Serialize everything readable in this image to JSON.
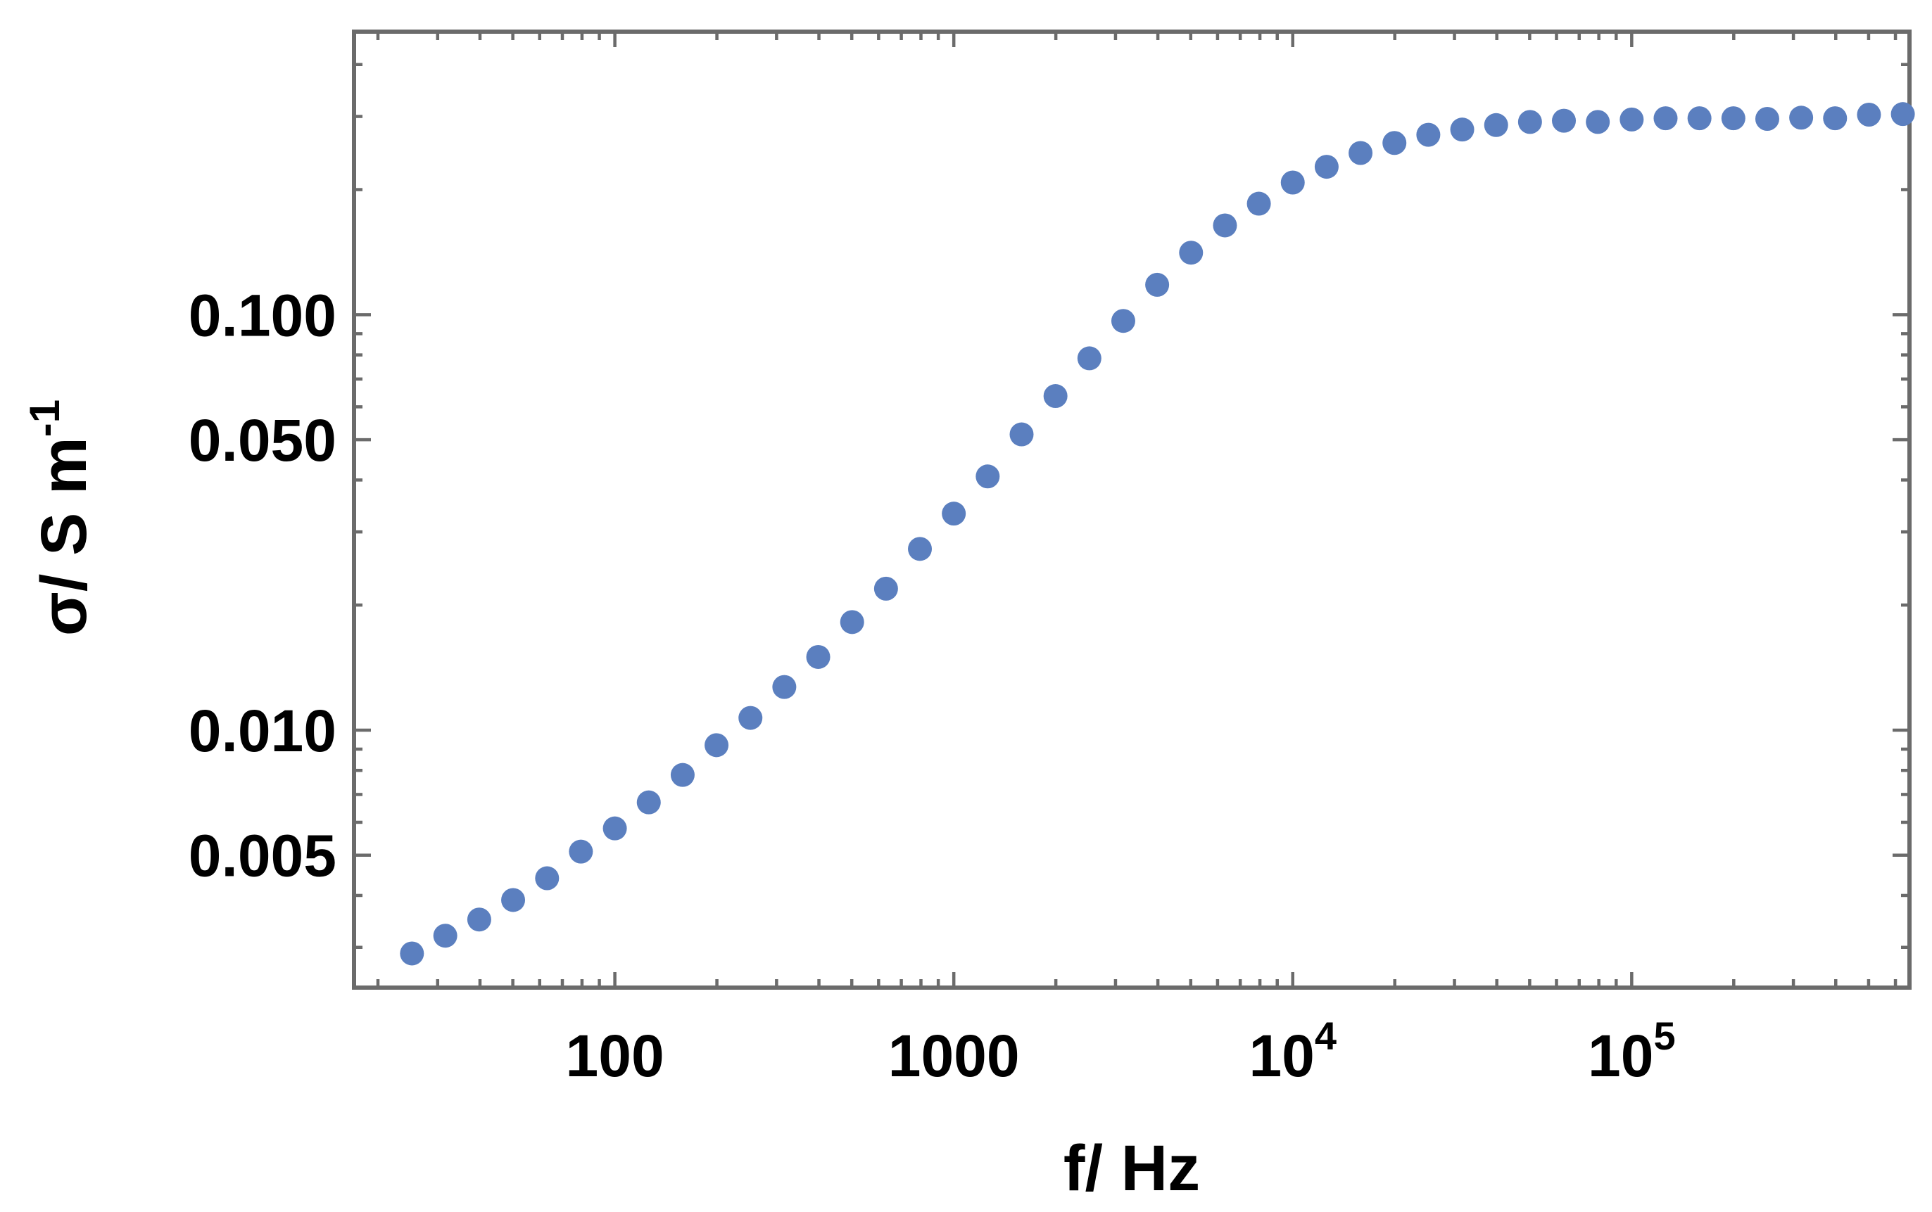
{
  "chart_data": {
    "type": "scatter",
    "title": "",
    "xlabel": "f/ Hz",
    "ylabel": "σ/ S m",
    "ylabel_exponent": "-1",
    "xscale": "log",
    "yscale": "log",
    "xlim": [
      17,
      660000
    ],
    "ylim": [
      0.0024,
      0.48
    ],
    "grid": false,
    "marker_color": "#5b7fbf",
    "x_ticks": [
      {
        "value": 100,
        "label": "100"
      },
      {
        "value": 1000,
        "label": "1000"
      },
      {
        "value": 10000,
        "label": "10",
        "exponent": "4"
      },
      {
        "value": 100000,
        "label": "10",
        "exponent": "5"
      }
    ],
    "y_ticks": [
      {
        "value": 0.1,
        "label": "0.100"
      },
      {
        "value": 0.05,
        "label": "0.050"
      },
      {
        "value": 0.01,
        "label": "0.010"
      },
      {
        "value": 0.005,
        "label": "0.005"
      }
    ],
    "series": [
      {
        "name": "σ",
        "x": [
          25.2,
          31.6,
          39.8,
          50.1,
          63.1,
          79.4,
          100,
          125.9,
          158.5,
          199.5,
          251.2,
          316.2,
          398.1,
          501.2,
          631,
          794.3,
          1000,
          1258.9,
          1584.9,
          1995.3,
          2511.9,
          3162.3,
          3981.1,
          5011.9,
          6309.6,
          7943.3,
          10000,
          12589,
          15849,
          19953,
          25119,
          31623,
          39811,
          50119,
          63096,
          79433,
          100000,
          125893,
          158489,
          199526,
          251189,
          316228,
          398107,
          501187,
          630957
        ],
        "y": [
          0.0029,
          0.0032,
          0.0035,
          0.0039,
          0.0044,
          0.0051,
          0.0058,
          0.0067,
          0.0078,
          0.0092,
          0.0107,
          0.0127,
          0.015,
          0.0182,
          0.0219,
          0.0273,
          0.0332,
          0.0408,
          0.0515,
          0.0637,
          0.0785,
          0.0966,
          0.118,
          0.141,
          0.164,
          0.185,
          0.208,
          0.227,
          0.245,
          0.259,
          0.271,
          0.279,
          0.286,
          0.291,
          0.293,
          0.291,
          0.295,
          0.297,
          0.297,
          0.297,
          0.296,
          0.298,
          0.297,
          0.303,
          0.304
        ]
      }
    ]
  }
}
